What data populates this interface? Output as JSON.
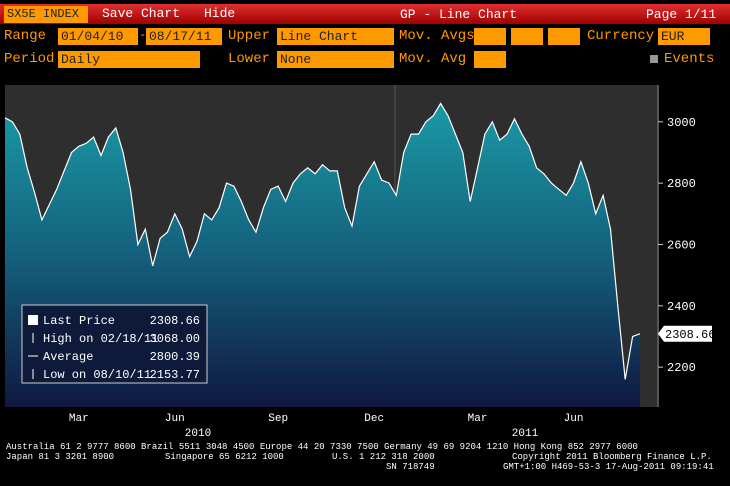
{
  "toolbar": {
    "ticker": "SX5E INDEX",
    "save": "Save Chart",
    "hide": "Hide",
    "title": "GP - Line Chart",
    "page": "Page 1/11"
  },
  "controls": {
    "range_label": "Range",
    "range_from": "01/04/10",
    "range_to": "08/17/11",
    "upper_label": "Upper",
    "upper": "Line Chart",
    "movavgs_label": "Mov. Avgs",
    "currency_label": "Currency",
    "currency": "EUR",
    "period_label": "Period",
    "period": "Daily",
    "lower_label": "Lower",
    "lower": "None",
    "movavg_label": "Mov. Avg",
    "events": "Events"
  },
  "chart_data": {
    "type": "line",
    "categories": [
      null,
      null,
      null,
      null,
      null,
      null,
      null,
      null,
      null,
      null,
      "Mar",
      null,
      null,
      null,
      null,
      null,
      null,
      null,
      null,
      null,
      null,
      null,
      null,
      "Jun",
      null,
      null,
      null,
      null,
      null,
      null,
      null,
      null,
      null,
      null,
      null,
      null,
      null,
      "Sep",
      null,
      null,
      null,
      null,
      null,
      null,
      null,
      null,
      null,
      null,
      null,
      null,
      "Dec",
      null,
      null,
      null,
      null,
      null,
      null,
      null,
      null,
      null,
      null,
      null,
      null,
      null,
      "Mar",
      null,
      null,
      null,
      null,
      null,
      null,
      null,
      null,
      null,
      null,
      null,
      null,
      "Jun",
      null,
      null,
      null,
      null,
      null,
      null,
      null,
      null,
      null
    ],
    "years": [
      "2010",
      "2011"
    ],
    "series": [
      {
        "name": "Last Price",
        "color": "#ffffff",
        "values": [
          3013,
          3000,
          2960,
          2850,
          2770,
          2680,
          2730,
          2780,
          2840,
          2900,
          2920,
          2930,
          2950,
          2890,
          2950,
          2980,
          2900,
          2780,
          2600,
          2650,
          2530,
          2620,
          2640,
          2700,
          2650,
          2560,
          2610,
          2700,
          2680,
          2720,
          2800,
          2790,
          2740,
          2680,
          2640,
          2720,
          2780,
          2790,
          2740,
          2800,
          2830,
          2850,
          2830,
          2860,
          2840,
          2840,
          2720,
          2660,
          2790,
          2830,
          2870,
          2810,
          2800,
          2760,
          2900,
          2960,
          2960,
          3000,
          3020,
          3060,
          3020,
          2960,
          2900,
          2740,
          2850,
          2960,
          3000,
          2940,
          2960,
          3010,
          2960,
          2920,
          2850,
          2830,
          2800,
          2780,
          2760,
          2800,
          2870,
          2800,
          2700,
          2760,
          2650,
          2400,
          2160,
          2300,
          2309
        ]
      }
    ],
    "ylim": [
      2070,
      3120
    ],
    "yticks": [
      2200,
      2400,
      2600,
      2800,
      3000
    ],
    "stats": [
      {
        "label": "Last Price",
        "value": 2308.66
      },
      {
        "label": "High on 02/18/11",
        "value": 3068,
        "value_label": "3068.00"
      },
      {
        "label": "Average",
        "value": 2800.39
      },
      {
        "label": "Low on 08/10/11",
        "value": 2153.77
      }
    ]
  },
  "footer": [
    "Australia 61 2 9777 8600 Brazil 5511 3048 4500 Europe 44 20 7330 7500 Germany 49 69 9204 1210 Hong Kong 852 2977 6000",
    "Japan 81 3 3201 8900",
    "Singapore 65 6212 1000",
    "U.S. 1 212 318 2000",
    "Copyright 2011 Bloomberg Finance L.P.",
    "SN 718749",
    "GMT+1:00 H469-53-3 17-Aug-2011 09:19:41"
  ]
}
